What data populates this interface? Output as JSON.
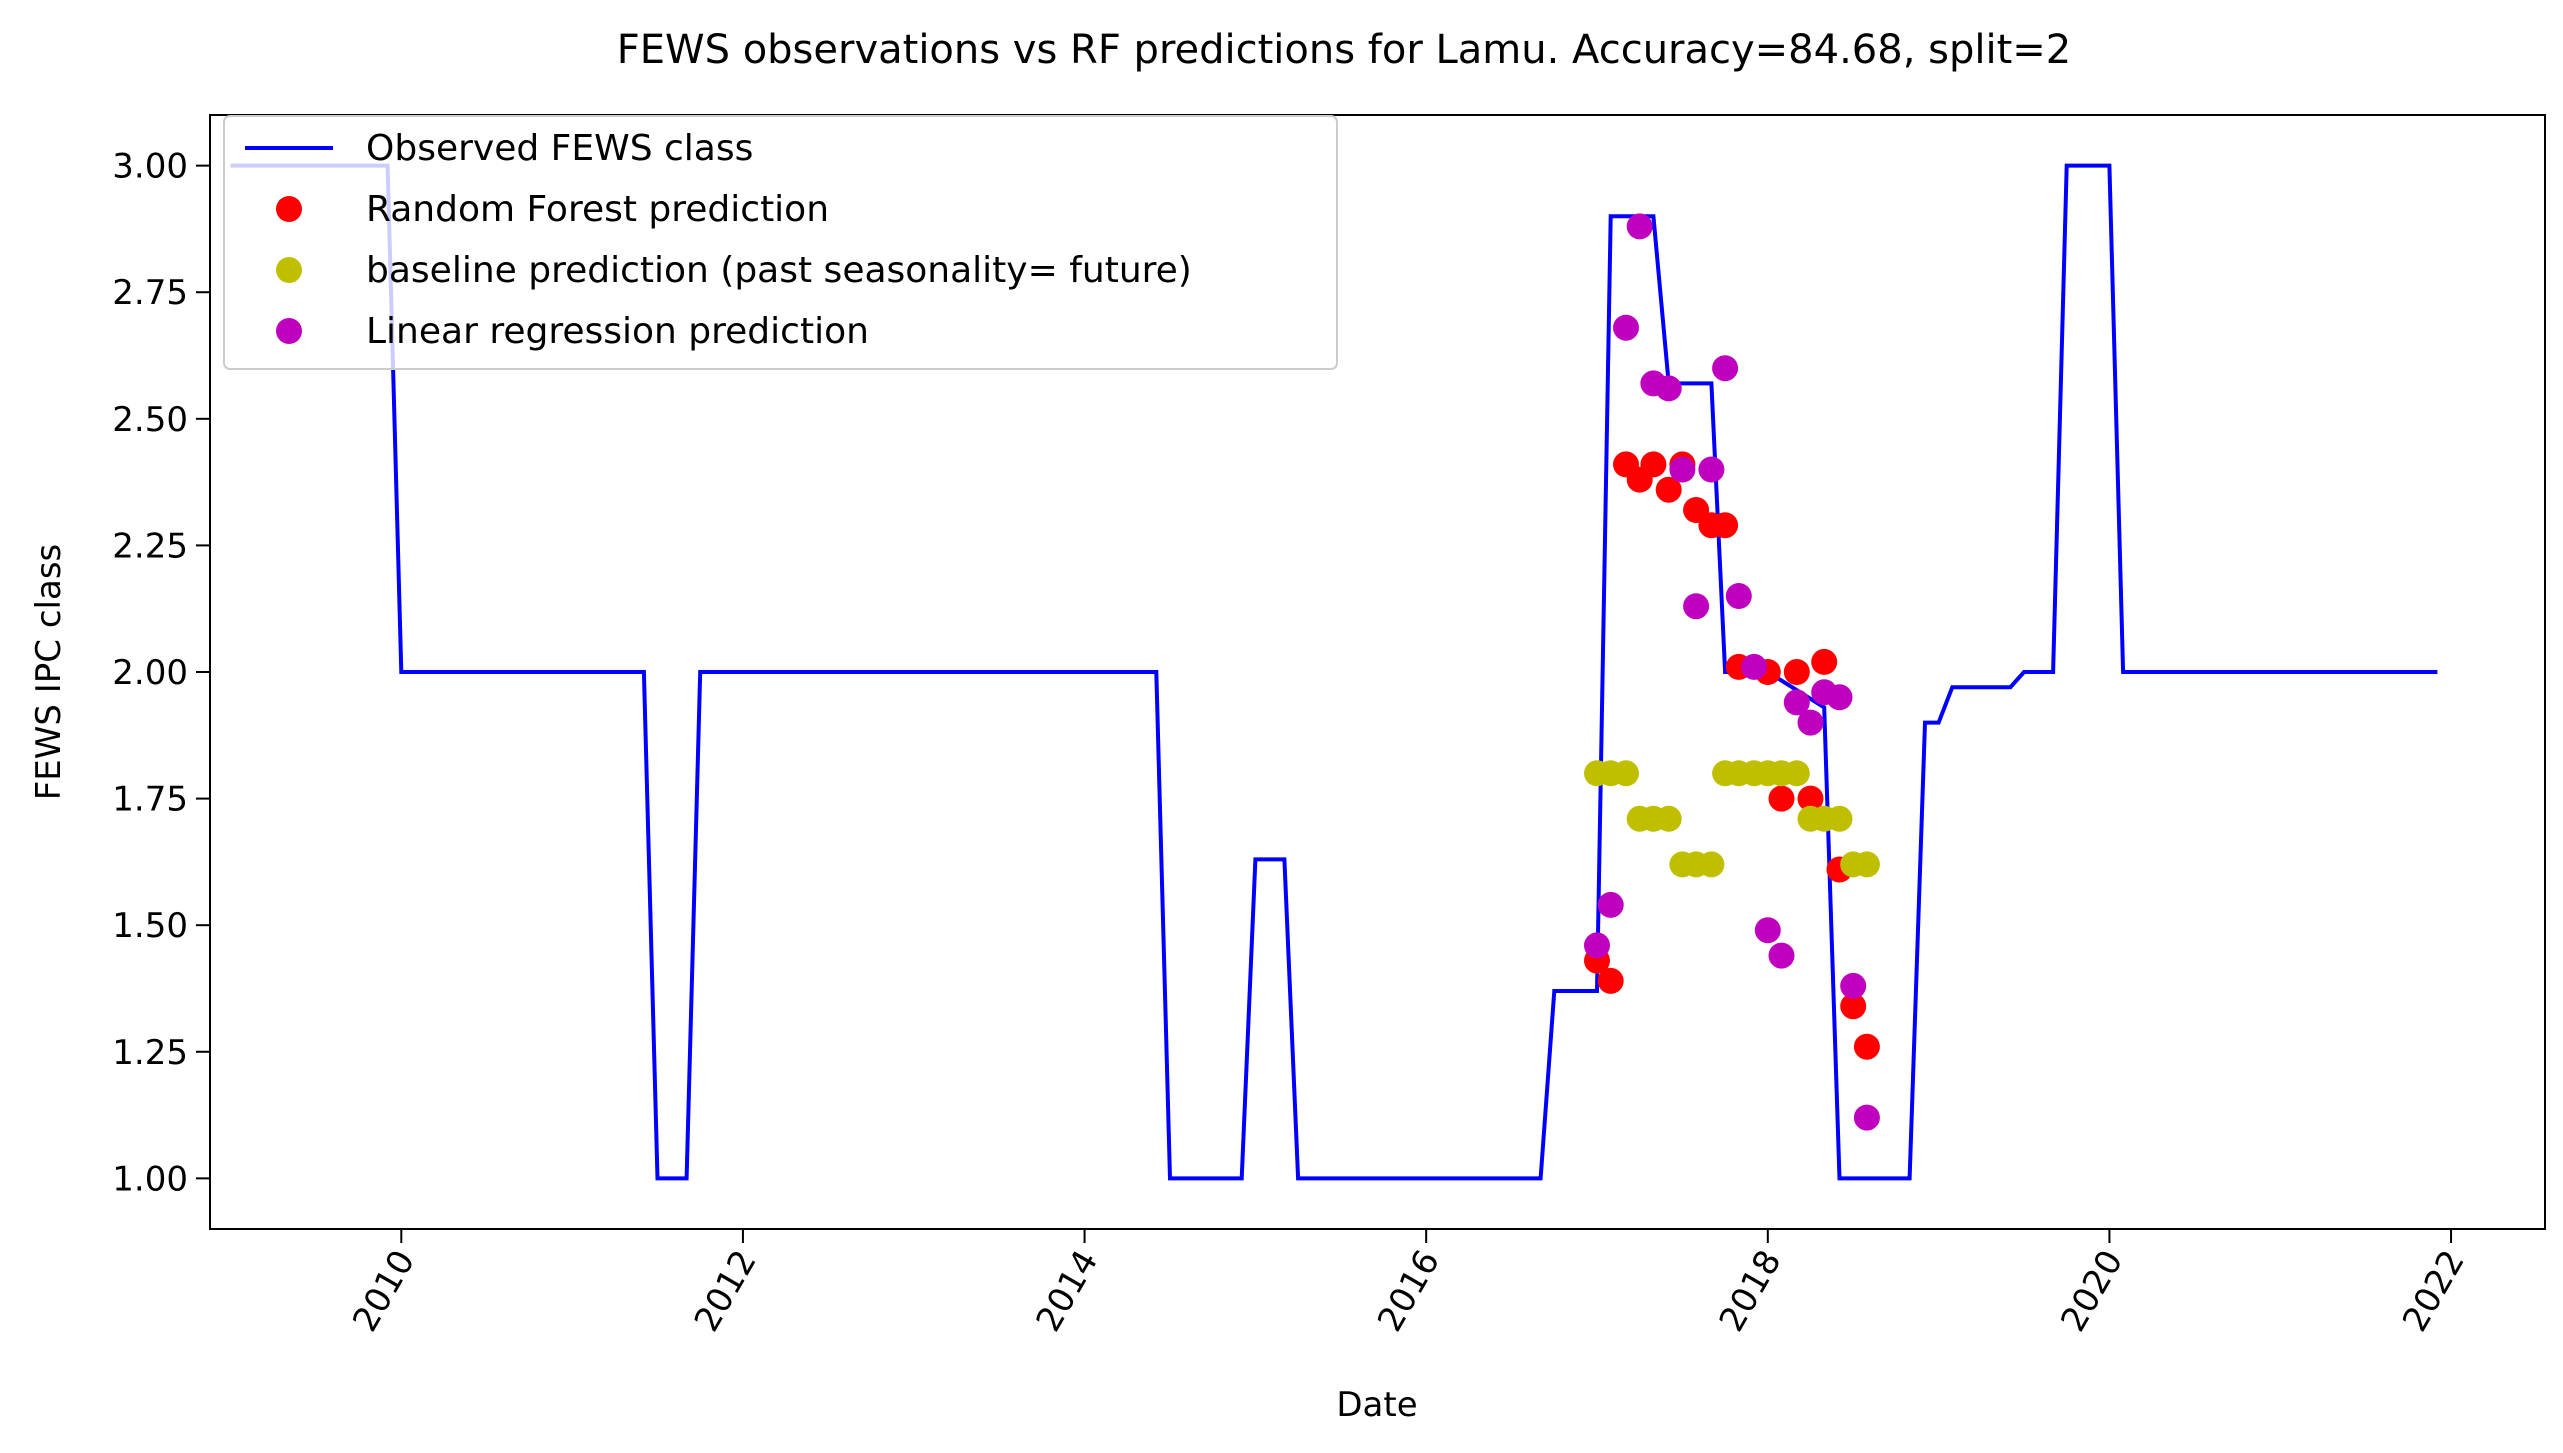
{
  "chart_data": {
    "type": "line",
    "title": "FEWS observations vs RF predictions for Lamu. Accuracy=84.68, split=2",
    "xlabel": "Date",
    "ylabel": "FEWS IPC class",
    "xlim": [
      2008.88,
      2022.55
    ],
    "ylim": [
      0.9,
      3.1
    ],
    "x_ticks": [
      2010,
      2012,
      2014,
      2016,
      2018,
      2020,
      2022
    ],
    "x_tick_labels": [
      "2010",
      "2012",
      "2014",
      "2016",
      "2018",
      "2020",
      "2022"
    ],
    "y_ticks": [
      1.0,
      1.25,
      1.5,
      1.75,
      2.0,
      2.25,
      2.5,
      2.75,
      3.0
    ],
    "y_tick_labels": [
      "1.00",
      "1.25",
      "1.50",
      "1.75",
      "2.00",
      "2.25",
      "2.50",
      "2.75",
      "3.00"
    ],
    "legend_position": "top-left",
    "grid": false,
    "series": [
      {
        "name": "Observed FEWS class",
        "kind": "line",
        "color": "#0000ff",
        "x": [
          2009.0,
          2009.92,
          2010.0,
          2011.42,
          2011.5,
          2011.67,
          2011.75,
          2014.42,
          2014.5,
          2014.92,
          2015.0,
          2015.17,
          2015.25,
          2016.67,
          2016.75,
          2017.0,
          2017.08,
          2017.33,
          2017.42,
          2017.67,
          2017.75,
          2018.0,
          2018.33,
          2018.42,
          2018.83,
          2018.92,
          2019.0,
          2019.08,
          2019.17,
          2019.42,
          2019.5,
          2019.67,
          2019.75,
          2020.0,
          2020.08,
          2021.92
        ],
        "y": [
          3.0,
          3.0,
          2.0,
          2.0,
          1.0,
          1.0,
          2.0,
          2.0,
          1.0,
          1.0,
          1.63,
          1.63,
          1.0,
          1.0,
          1.37,
          1.37,
          2.9,
          2.9,
          2.57,
          2.57,
          2.0,
          2.0,
          1.93,
          1.0,
          1.0,
          1.9,
          1.9,
          1.97,
          1.97,
          1.97,
          2.0,
          2.0,
          3.0,
          3.0,
          2.0,
          2.0
        ]
      },
      {
        "name": "Random Forest prediction",
        "kind": "scatter",
        "color": "#ff0000",
        "x": [
          2017.0,
          2017.08,
          2017.17,
          2017.25,
          2017.33,
          2017.42,
          2017.5,
          2017.58,
          2017.67,
          2017.75,
          2017.83,
          2018.0,
          2018.08,
          2018.17,
          2018.25,
          2018.33,
          2018.42,
          2018.5,
          2018.58
        ],
        "y": [
          1.43,
          1.39,
          2.41,
          2.38,
          2.41,
          2.36,
          2.41,
          2.32,
          2.29,
          2.29,
          2.01,
          2.0,
          1.75,
          2.0,
          1.75,
          2.02,
          1.61,
          1.34,
          1.26
        ]
      },
      {
        "name": "baseline prediction (past seasonality= future)",
        "kind": "scatter",
        "color": "#bfbf00",
        "x": [
          2017.0,
          2017.08,
          2017.17,
          2017.25,
          2017.33,
          2017.42,
          2017.5,
          2017.58,
          2017.67,
          2017.75,
          2017.83,
          2017.92,
          2018.0,
          2018.08,
          2018.17,
          2018.25,
          2018.33,
          2018.42,
          2018.5,
          2018.58
        ],
        "y": [
          1.8,
          1.8,
          1.8,
          1.71,
          1.71,
          1.71,
          1.62,
          1.62,
          1.62,
          1.8,
          1.8,
          1.8,
          1.8,
          1.8,
          1.8,
          1.71,
          1.71,
          1.71,
          1.62,
          1.62
        ]
      },
      {
        "name": "Linear regression prediction",
        "kind": "scatter",
        "color": "#bf00bf",
        "x": [
          2017.0,
          2017.08,
          2017.17,
          2017.25,
          2017.33,
          2017.42,
          2017.5,
          2017.58,
          2017.67,
          2017.75,
          2017.83,
          2017.92,
          2018.0,
          2018.08,
          2018.17,
          2018.25,
          2018.33,
          2018.42,
          2018.5,
          2018.58
        ],
        "y": [
          1.46,
          1.54,
          2.68,
          2.88,
          2.57,
          2.56,
          2.4,
          2.13,
          2.4,
          2.6,
          2.15,
          2.01,
          1.49,
          1.44,
          1.94,
          1.9,
          1.96,
          1.95,
          1.38,
          1.12
        ]
      }
    ]
  }
}
